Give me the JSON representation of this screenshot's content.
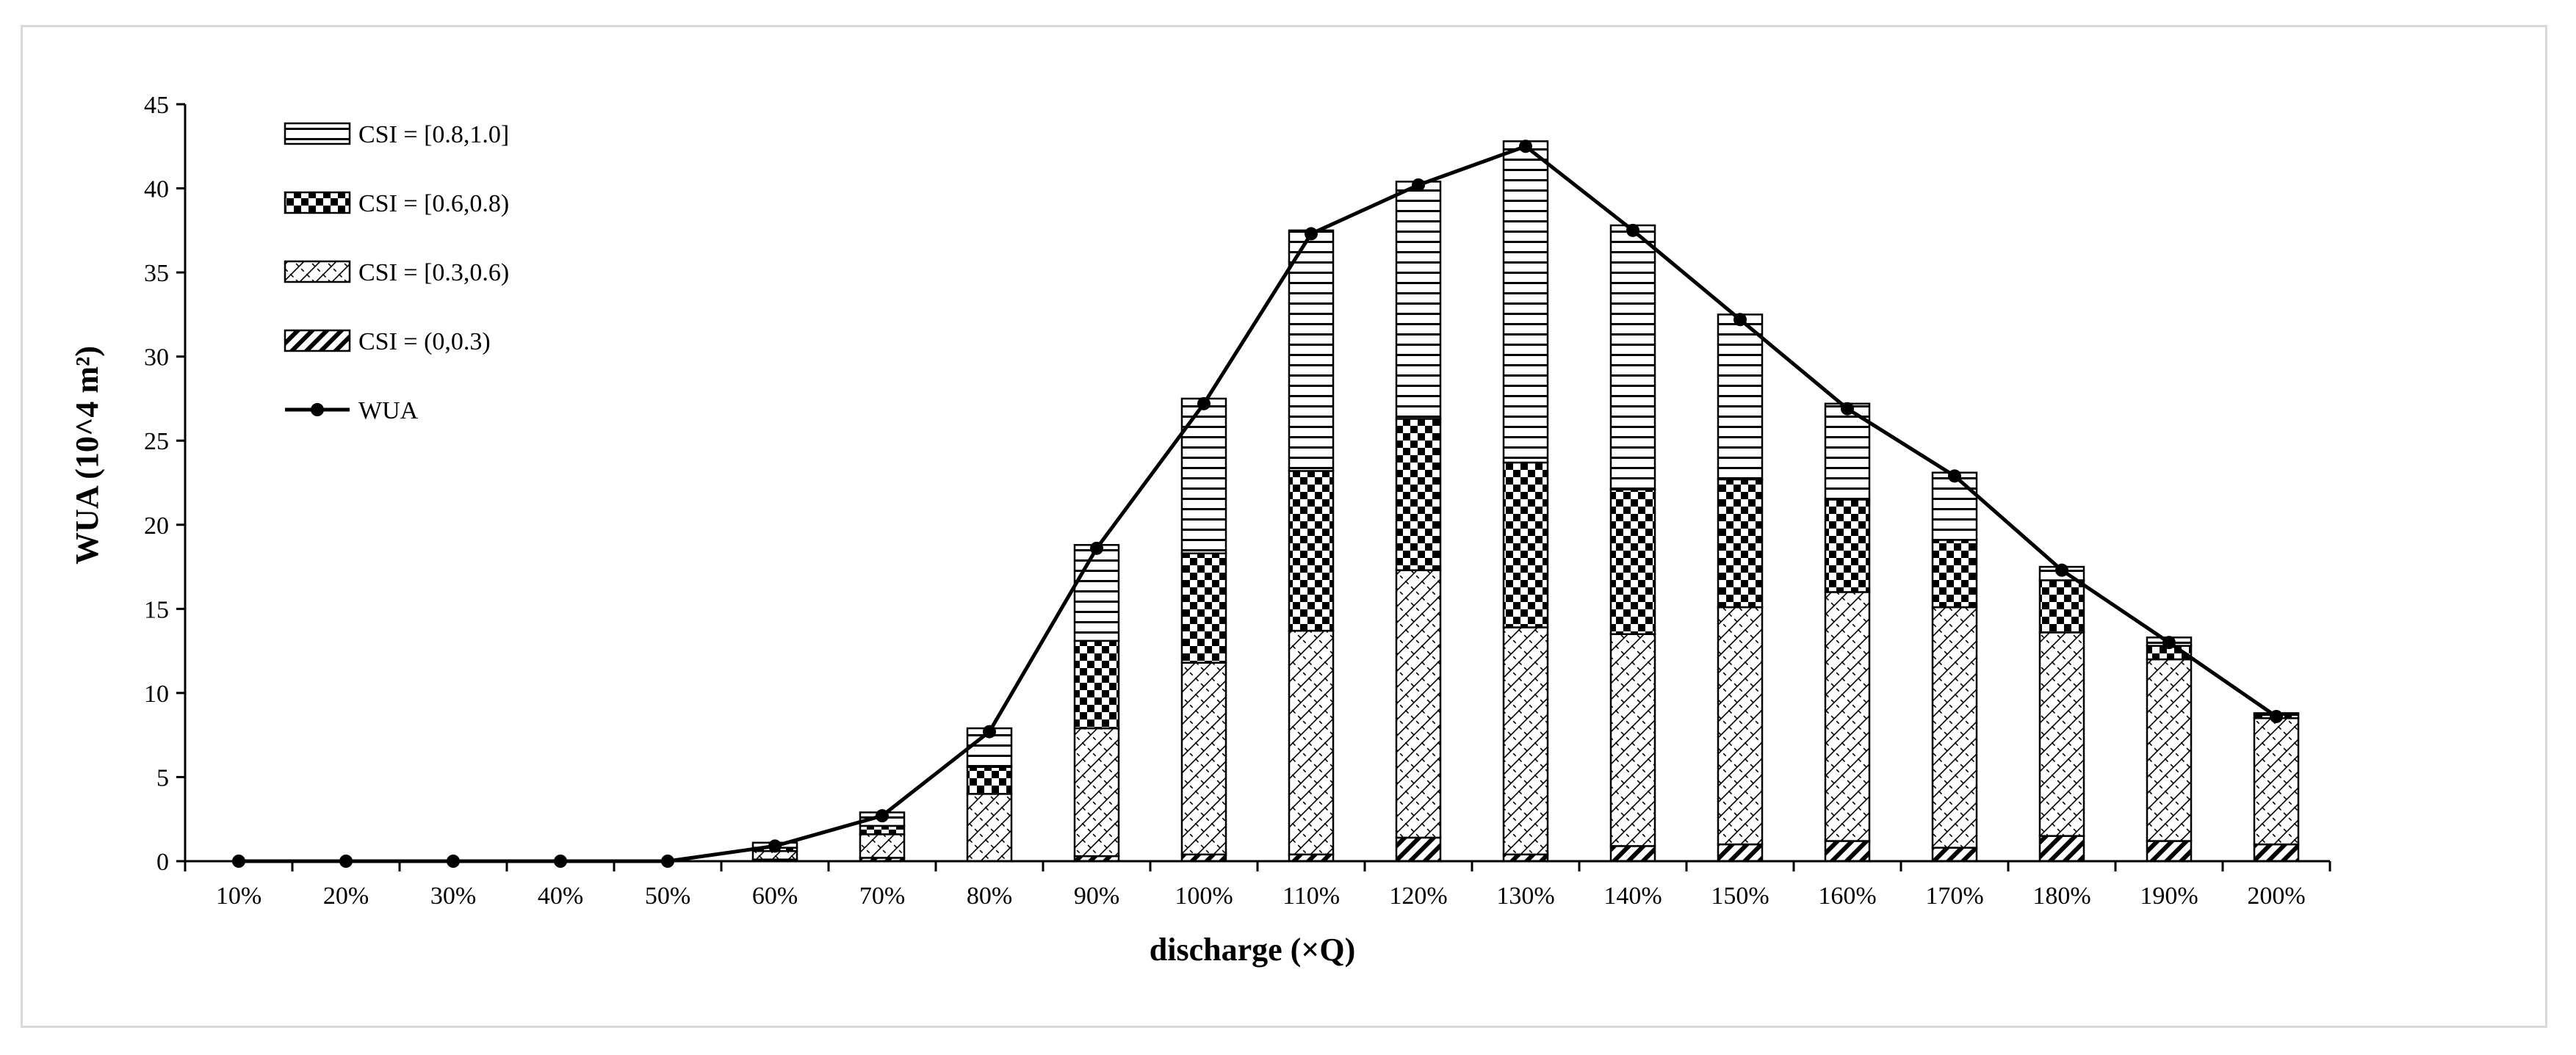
{
  "chart_data": {
    "type": "bar",
    "stacked": true,
    "categories": [
      "10%",
      "20%",
      "30%",
      "40%",
      "50%",
      "60%",
      "70%",
      "80%",
      "90%",
      "100%",
      "110%",
      "120%",
      "130%",
      "140%",
      "150%",
      "160%",
      "170%",
      "180%",
      "190%",
      "200%"
    ],
    "series": [
      {
        "name": "CSI = (0,0.3)",
        "pattern": "diagonal-hatch",
        "values": [
          0,
          0,
          0,
          0,
          0,
          0.1,
          0.2,
          0,
          0.3,
          0.4,
          0.4,
          1.4,
          0.4,
          0.9,
          1.0,
          1.2,
          0.8,
          1.5,
          1.2,
          1.0
        ]
      },
      {
        "name": "CSI = [0.3,0.6)",
        "pattern": "crosshatch",
        "values": [
          0,
          0,
          0,
          0,
          0,
          0.5,
          1.4,
          4.0,
          7.6,
          11.4,
          13.3,
          15.9,
          13.5,
          12.6,
          14.1,
          14.8,
          14.3,
          12.1,
          10.8,
          7.5
        ]
      },
      {
        "name": "CSI = [0.6,0.8)",
        "pattern": "checker",
        "values": [
          0,
          0,
          0,
          0,
          0,
          0.2,
          0.5,
          1.6,
          5.2,
          6.5,
          9.5,
          9.0,
          9.8,
          8.6,
          7.6,
          5.5,
          4.0,
          3.1,
          0.8,
          0.2
        ]
      },
      {
        "name": "CSI = [0.8,1.0]",
        "pattern": "horizontal-lines",
        "values": [
          0,
          0,
          0,
          0,
          0,
          0.3,
          0.8,
          2.3,
          5.7,
          9.2,
          14.3,
          14.1,
          19.1,
          15.7,
          9.8,
          5.7,
          4.0,
          0.8,
          0.5,
          0.1
        ]
      }
    ],
    "line": {
      "name": "WUA",
      "values": [
        0,
        0,
        0,
        0,
        0,
        0.9,
        2.7,
        7.7,
        18.6,
        27.2,
        37.3,
        40.2,
        42.5,
        37.5,
        32.2,
        26.9,
        22.9,
        17.3,
        13.0,
        8.6
      ]
    },
    "xlabel": "discharge (×Q)",
    "ylabel": "WUA (10^4 m²)",
    "ylim": [
      0,
      45
    ],
    "yticks": [
      "0",
      "5",
      "10",
      "15",
      "20",
      "25",
      "30",
      "35",
      "40",
      "45"
    ],
    "legend_position": "top-left",
    "grid": false,
    "colors": {
      "bar_stroke": "#000000",
      "line": "#000000",
      "axis": "#000000",
      "frame": "#d9d9d9"
    }
  }
}
